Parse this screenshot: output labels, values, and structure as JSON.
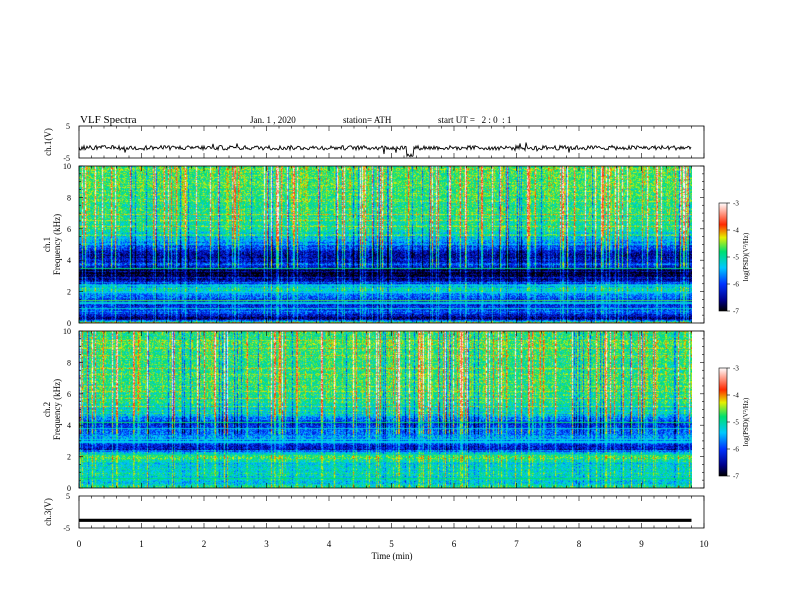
{
  "header": {
    "title": "VLF Spectra",
    "date": "Jan. 1 , 2020",
    "station": "station= ATH",
    "start_ut": "start UT =   2 : 0  : 1"
  },
  "chart_data": [
    {
      "type": "line",
      "panel": "ch1-waveform",
      "ylabel": "ch.1(V)",
      "yticks": [
        "5",
        "-5"
      ],
      "ylim": [
        -5,
        5
      ],
      "xlim": [
        0,
        10
      ],
      "data_end_min": 9.8,
      "baseline_v": -1.8,
      "spike_min_v": -4.6,
      "spike_time_min": 5.3
    },
    {
      "type": "heatmap",
      "panel": "ch1-spectrogram",
      "ylabel": "ch.1\nFrequency (kHz)",
      "yticks": [
        "10",
        "8",
        "6",
        "4",
        "2",
        "0"
      ],
      "ylim": [
        0,
        10
      ],
      "xlim": [
        0,
        10
      ],
      "data_end_min": 9.8,
      "colorbar": {
        "label": "log(PSD)(V²/Hz)",
        "ticks": [
          "-3",
          "-4",
          "-5",
          "-6",
          "-7"
        ],
        "range": [
          -7,
          -3
        ]
      },
      "profile_khz": [
        [
          0,
          -4.3
        ],
        [
          0.3,
          -6.8
        ],
        [
          0.7,
          -6.0
        ],
        [
          1.2,
          -6.2
        ],
        [
          1.8,
          -5.8
        ],
        [
          2.2,
          -5.0
        ],
        [
          2.6,
          -6.4
        ],
        [
          3.2,
          -7.0
        ],
        [
          3.7,
          -6.3
        ],
        [
          4.4,
          -6.5
        ],
        [
          5.2,
          -5.6
        ],
        [
          6.0,
          -5.0
        ],
        [
          7.5,
          -4.8
        ],
        [
          10,
          -4.7
        ]
      ]
    },
    {
      "type": "heatmap",
      "panel": "ch2-spectrogram",
      "ylabel": "ch.2\nFrequency (kHz)",
      "yticks": [
        "10",
        "8",
        "6",
        "4",
        "2",
        "0"
      ],
      "ylim": [
        0,
        10
      ],
      "xlim": [
        0,
        10
      ],
      "data_end_min": 9.8,
      "colorbar": {
        "label": "log(PSD)(V²/Hz)",
        "ticks": [
          "-3",
          "-4",
          "-5",
          "-6",
          "-7"
        ],
        "range": [
          -7,
          -3
        ]
      },
      "profile_khz": [
        [
          0,
          -4.8
        ],
        [
          0.4,
          -5.4
        ],
        [
          1.0,
          -5.1
        ],
        [
          1.6,
          -5.3
        ],
        [
          2.0,
          -4.6
        ],
        [
          2.5,
          -6.4
        ],
        [
          3.2,
          -5.6
        ],
        [
          4.2,
          -6.2
        ],
        [
          4.6,
          -5.4
        ],
        [
          5.5,
          -5.0
        ],
        [
          6.5,
          -4.9
        ],
        [
          8,
          -4.8
        ],
        [
          10,
          -4.8
        ]
      ]
    },
    {
      "type": "line",
      "panel": "ch3-waveform",
      "ylabel": "ch.3(V)",
      "yticks": [
        "5",
        "-5"
      ],
      "ylim": [
        -5,
        5
      ],
      "xlim": [
        0,
        10
      ],
      "data_end_min": 9.8,
      "baseline_v": -2.6
    }
  ],
  "xaxis": {
    "label": "Time (min)",
    "ticks": [
      "0",
      "1",
      "2",
      "3",
      "4",
      "5",
      "6",
      "7",
      "8",
      "9",
      "10"
    ]
  }
}
